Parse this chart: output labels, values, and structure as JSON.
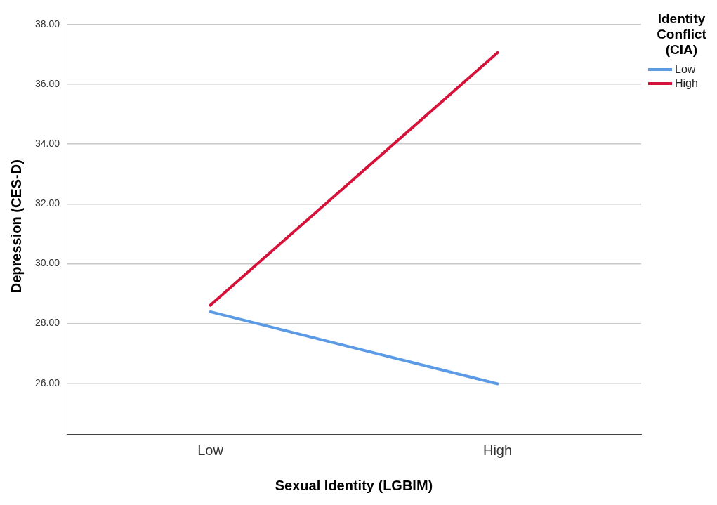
{
  "chart_data": {
    "type": "line",
    "xlabel": "Sexual Identity (LGBIM)",
    "ylabel": "Depression (CES-D)",
    "legend_title": "Identity Conflict (CIA)",
    "categories": [
      "Low",
      "High"
    ],
    "series": [
      {
        "name": "Low",
        "color": "#5b9be6",
        "values": [
          28.39,
          25.98
        ]
      },
      {
        "name": "High",
        "color": "#d6123a",
        "values": [
          28.61,
          37.06
        ]
      }
    ],
    "ylim": [
      24.3,
      38.2
    ],
    "yticks": [
      {
        "value": 26,
        "label": "26.00"
      },
      {
        "value": 28,
        "label": "28.00"
      },
      {
        "value": 30,
        "label": "30.00"
      },
      {
        "value": 32,
        "label": "32.00"
      },
      {
        "value": 34,
        "label": "34.00"
      },
      {
        "value": 36,
        "label": "36.00"
      },
      {
        "value": 38,
        "label": "38.00"
      }
    ],
    "grid": "y",
    "legend": "top right",
    "marker": "none",
    "line_style": "solid"
  }
}
